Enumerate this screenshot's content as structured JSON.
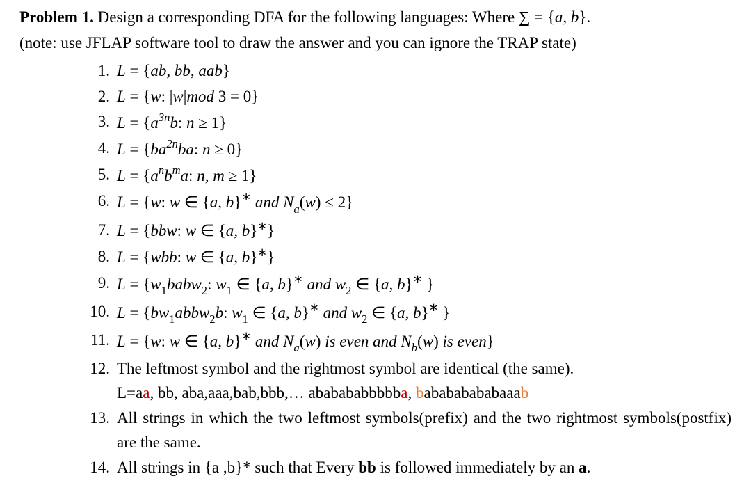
{
  "heading_bold": "Problem 1.",
  "heading_rest": " Design a corresponding DFA for the following languages: Where ∑ =  {",
  "heading_ab": "a, b",
  "heading_end": "}.",
  "note": "(note: use JFLAP software tool to draw the answer and you can ignore the TRAP state)",
  "items": {
    "n1": "1.",
    "i1_a": "L",
    "i1_b": " = {",
    "i1_c": "ab, bb, aab",
    "i1_d": "}",
    "n2": "2.",
    "i2_a": "L",
    "i2_b": " = {",
    "i2_c": "w",
    "i2_d": ": |",
    "i2_e": "w",
    "i2_f": "|",
    "i2_g": "mod",
    "i2_h": " 3 =  0}",
    "n3": "3.",
    "i3_a": "L",
    "i3_b": " = {",
    "i3_c": "a",
    "i3_sup": "3n",
    "i3_d": "b",
    "i3_e": ": ",
    "i3_f": "n",
    "i3_g": " ≥ 1}",
    "n4": "4.",
    "i4_a": "L",
    "i4_b": " = {",
    "i4_c": "ba",
    "i4_sup": "2n",
    "i4_d": "ba",
    "i4_e": ": ",
    "i4_f": "n",
    "i4_g": " ≥ 0}",
    "n5": "5.",
    "i5_a": "L",
    "i5_b": " = {",
    "i5_c": "a",
    "i5_sup1": "n",
    "i5_d": "b",
    "i5_sup2": "m",
    "i5_e": "a",
    "i5_f": ": ",
    "i5_g": "n, m",
    "i5_h": " ≥ 1}",
    "n6": "6.",
    "i6_a": "L",
    "i6_b": " = {",
    "i6_c": "w",
    "i6_d": ": ",
    "i6_e": "w",
    "i6_f": " ∈ {",
    "i6_g": "a, b",
    "i6_h": "}",
    "i6_star": "∗",
    "i6_i": " and  N",
    "i6_sub": "a",
    "i6_j": "(",
    "i6_k": "w",
    "i6_l": ")  ≤ 2}",
    "n7": "7.",
    "i7_a": "L",
    "i7_b": " = {",
    "i7_c": "bbw",
    "i7_d": ": ",
    "i7_e": "w",
    "i7_f": " ∈ {",
    "i7_g": "a, b",
    "i7_h": "}",
    "i7_star": "∗",
    "i7_i": "}",
    "n8": "8.",
    "i8_a": "L",
    "i8_b": " = {",
    "i8_c": "wbb",
    "i8_d": ": ",
    "i8_e": "w",
    "i8_f": " ∈ {",
    "i8_g": "a, b",
    "i8_h": "}",
    "i8_star": "∗",
    "i8_i": "}",
    "n9": "9.",
    "i9_a": "L",
    "i9_b": " = {",
    "i9_c": "w",
    "i9_sub1": "1",
    "i9_d": "babw",
    "i9_sub2": "2",
    "i9_e": ": ",
    "i9_f": "w",
    "i9_sub3": "1",
    "i9_g": " ∈ {",
    "i9_h": "a, b",
    "i9_i": "}",
    "i9_star1": "∗",
    "i9_j": " and w",
    "i9_sub4": "2",
    "i9_k": "  ∈ {",
    "i9_l": "a, b",
    "i9_m": "}",
    "i9_star2": "∗",
    "i9_n": " }",
    "n10": "10.",
    "i10_a": "L",
    "i10_b": " = {",
    "i10_c": "bw",
    "i10_sub1": "1",
    "i10_d": "abbw",
    "i10_sub2": "2",
    "i10_e": "b",
    "i10_f": ": ",
    "i10_g": "w",
    "i10_sub3": "1",
    "i10_h": " ∈ {",
    "i10_i": "a, b",
    "i10_j": "}",
    "i10_star1": "∗",
    "i10_k": " and w",
    "i10_sub4": "2",
    "i10_l": "  ∈ {",
    "i10_m": "a, b",
    "i10_n": "}",
    "i10_star2": "∗",
    "i10_o": " }",
    "n11": "11.",
    "i11_a": "L",
    "i11_b": " = {",
    "i11_c": "w",
    "i11_d": ": ",
    "i11_e": "w",
    "i11_f": " ∈ {",
    "i11_g": "a, b",
    "i11_h": "}",
    "i11_star": "∗",
    "i11_i": " and  N",
    "i11_sub1": "a",
    "i11_j": "(",
    "i11_k": "w",
    "i11_l": ")  ",
    "i11_m": "is even and N",
    "i11_sub2": "b",
    "i11_n": "(",
    "i11_o": "w",
    "i11_p": ") ",
    "i11_q": "is even",
    "i11_r": "}",
    "n12": "12.",
    "i12_a": "The leftmost symbol and the rightmost symbol are identical (the same).",
    "i12_b": "L=a",
    "i12_c": "a",
    "i12_d": ", bb, aba,aaa,bab,bbb,… ababababbbbb",
    "i12_e": "a",
    "i12_f": ", ",
    "i12_g": "b",
    "i12_h": "abababababaaa",
    "i12_i": "b",
    "n13": "13.",
    "i13_a": "All strings in which the two leftmost symbols(prefix) and the two rightmost symbols(postfix) are the same.",
    "n14": "14.",
    "i14_a": "All strings in {a ,b}* such that Every ",
    "i14_b": "bb",
    "i14_c": " is followed immediately by an ",
    "i14_d": "a",
    "i14_e": "."
  }
}
